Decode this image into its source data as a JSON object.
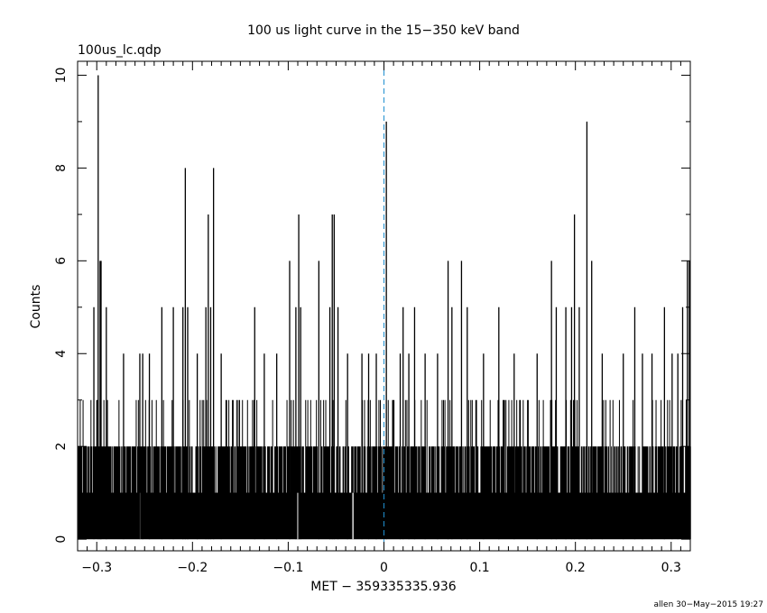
{
  "chart_data": {
    "type": "bar",
    "title": "100 us light curve in the 15−350 keV band",
    "file_label": "100us_lc.qdp",
    "xlabel": "MET − 359335335.936",
    "ylabel": "Counts",
    "footer": "allen 30−May−2015 19:27",
    "xlim": [
      -0.32,
      0.32
    ],
    "ylim": [
      -0.25,
      10.3
    ],
    "xticks": [
      -0.3,
      -0.2,
      -0.1,
      0,
      0.1,
      0.2,
      0.3
    ],
    "xtick_labels": [
      "−0.3",
      "−0.2",
      "−0.1",
      "0",
      "0.1",
      "0.2",
      "0.3"
    ],
    "yticks": [
      0,
      2,
      4,
      6,
      8,
      10
    ],
    "ytick_labels": [
      "0",
      "2",
      "4",
      "6",
      "8",
      "10"
    ],
    "bin_width": 0.0001,
    "trigger_marker_x": 0,
    "bar_color": "#000000",
    "marker_color": "#1f8fd0",
    "peaks": [
      {
        "x": -0.2985,
        "y": 10
      },
      {
        "x": -0.2965,
        "y": 6
      },
      {
        "x": -0.2955,
        "y": 6
      },
      {
        "x": -0.29,
        "y": 5
      },
      {
        "x": -0.303,
        "y": 5
      },
      {
        "x": -0.272,
        "y": 4
      },
      {
        "x": -0.255,
        "y": 4
      },
      {
        "x": -0.252,
        "y": 4
      },
      {
        "x": -0.245,
        "y": 4
      },
      {
        "x": -0.232,
        "y": 5
      },
      {
        "x": -0.22,
        "y": 5
      },
      {
        "x": -0.21,
        "y": 5
      },
      {
        "x": -0.2075,
        "y": 8
      },
      {
        "x": -0.205,
        "y": 5
      },
      {
        "x": -0.195,
        "y": 4
      },
      {
        "x": -0.186,
        "y": 5
      },
      {
        "x": -0.1835,
        "y": 7
      },
      {
        "x": -0.181,
        "y": 5
      },
      {
        "x": -0.178,
        "y": 8
      },
      {
        "x": -0.17,
        "y": 4
      },
      {
        "x": -0.135,
        "y": 5
      },
      {
        "x": -0.125,
        "y": 4
      },
      {
        "x": -0.112,
        "y": 4
      },
      {
        "x": -0.0985,
        "y": 6
      },
      {
        "x": -0.092,
        "y": 5
      },
      {
        "x": -0.089,
        "y": 7
      },
      {
        "x": -0.087,
        "y": 5
      },
      {
        "x": -0.068,
        "y": 6
      },
      {
        "x": -0.0565,
        "y": 5
      },
      {
        "x": -0.054,
        "y": 7
      },
      {
        "x": -0.052,
        "y": 7
      },
      {
        "x": -0.048,
        "y": 5
      },
      {
        "x": -0.038,
        "y": 4
      },
      {
        "x": -0.023,
        "y": 4
      },
      {
        "x": -0.016,
        "y": 4
      },
      {
        "x": -0.008,
        "y": 4
      },
      {
        "x": 0.0025,
        "y": 9
      },
      {
        "x": 0.017,
        "y": 4
      },
      {
        "x": 0.02,
        "y": 5
      },
      {
        "x": 0.026,
        "y": 4
      },
      {
        "x": 0.032,
        "y": 5
      },
      {
        "x": 0.043,
        "y": 4
      },
      {
        "x": 0.056,
        "y": 4
      },
      {
        "x": 0.067,
        "y": 6
      },
      {
        "x": 0.071,
        "y": 5
      },
      {
        "x": 0.081,
        "y": 6
      },
      {
        "x": 0.087,
        "y": 5
      },
      {
        "x": 0.104,
        "y": 4
      },
      {
        "x": 0.12,
        "y": 5
      },
      {
        "x": 0.136,
        "y": 4
      },
      {
        "x": 0.16,
        "y": 4
      },
      {
        "x": 0.175,
        "y": 6
      },
      {
        "x": 0.18,
        "y": 5
      },
      {
        "x": 0.19,
        "y": 5
      },
      {
        "x": 0.196,
        "y": 5
      },
      {
        "x": 0.199,
        "y": 7
      },
      {
        "x": 0.204,
        "y": 5
      },
      {
        "x": 0.212,
        "y": 9
      },
      {
        "x": 0.217,
        "y": 6
      },
      {
        "x": 0.228,
        "y": 4
      },
      {
        "x": 0.25,
        "y": 4
      },
      {
        "x": 0.262,
        "y": 5
      },
      {
        "x": 0.27,
        "y": 4
      },
      {
        "x": 0.28,
        "y": 4
      },
      {
        "x": 0.293,
        "y": 5
      },
      {
        "x": 0.301,
        "y": 4
      },
      {
        "x": 0.307,
        "y": 4
      },
      {
        "x": 0.312,
        "y": 5
      },
      {
        "x": 0.317,
        "y": 6
      },
      {
        "x": 0.319,
        "y": 6
      }
    ]
  }
}
